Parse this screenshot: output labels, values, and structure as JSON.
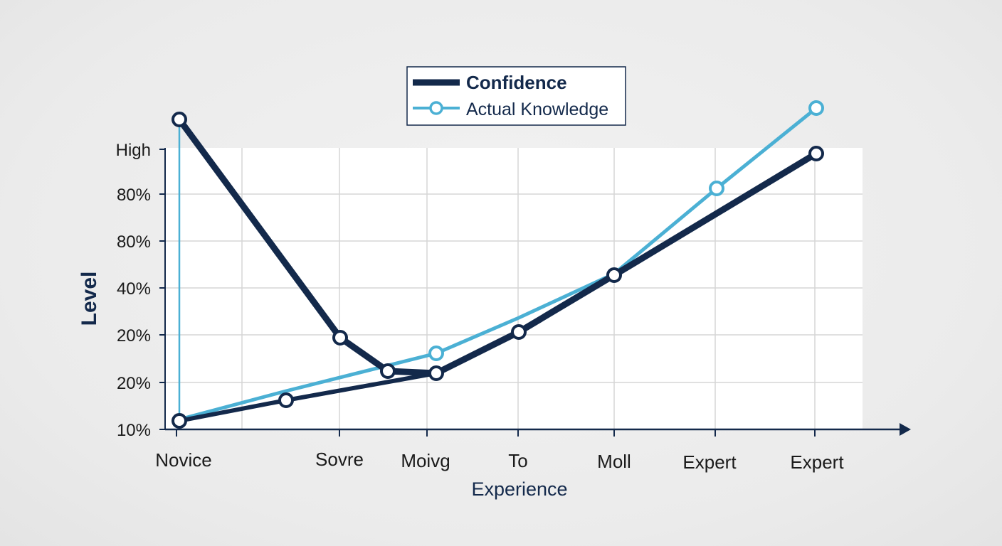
{
  "chart_data": {
    "type": "line",
    "xlabel": "Experience",
    "ylabel": "Level",
    "x_tick_labels": [
      "Novice",
      "Sovre",
      "Moivg",
      "To",
      "Moll",
      "Expert",
      "Expert"
    ],
    "y_tick_labels": [
      "10%",
      "20%",
      "20%",
      "40%",
      "80%",
      "80%",
      "High"
    ],
    "x": [
      0,
      1.1,
      1.6,
      2.1,
      2.5,
      3.4,
      4.35,
      5.35,
      6.4
    ],
    "series": [
      {
        "name": "Confidence",
        "color": "#13294b",
        "values": [
          7.4,
          1.0,
          0.7,
          0.6,
          1.0,
          2.3,
          3.2,
          4.4,
          5.8
        ],
        "value_scale": "axis ticks index (0 = 10%, 6 = High)"
      },
      {
        "name": "Actual Knowledge",
        "color": "#4bb0d4",
        "values": [
          0.2,
          0.65,
          1.1,
          1.6,
          1.85,
          2.6,
          3.3,
          5.0,
          6.8
        ]
      }
    ],
    "legend": {
      "position": "top-center"
    },
    "grid": true
  }
}
